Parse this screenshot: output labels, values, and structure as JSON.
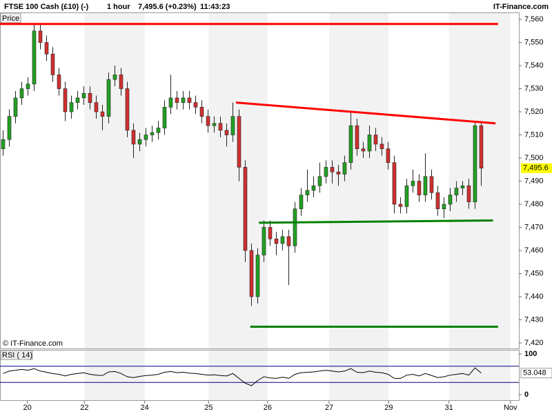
{
  "header": {
    "instrument": "FTSE 100 Cash (£10) (-)",
    "interval": "1 hour",
    "quote": "7,495.6 (+0.23%)",
    "time": "11:43:23",
    "brand": "IT-Finance.com"
  },
  "chart_data": {
    "type": "candlestick",
    "panel_label": "Price",
    "watermark": "© IT-Finance.com",
    "last_label": "7,495.6",
    "up_color": "#22a022",
    "down_color": "#d03030",
    "xlim": [
      0,
      83.56
    ],
    "xticks": [
      {
        "value": 4.4,
        "label": "20"
      },
      {
        "value": 13.6,
        "label": "22"
      },
      {
        "value": 23.3,
        "label": "24"
      },
      {
        "value": 33.6,
        "label": "25"
      },
      {
        "value": 43.1,
        "label": "26"
      },
      {
        "value": 53,
        "label": "27"
      },
      {
        "value": 62.6,
        "label": "29"
      },
      {
        "value": 72.3,
        "label": "31"
      },
      {
        "value": 82.2,
        "label": "Nov"
      }
    ],
    "ylim": [
      7417.6,
      7563
    ],
    "yticks": [
      {
        "value": 7420,
        "label": "7,420"
      },
      {
        "value": 7430,
        "label": "7,430"
      },
      {
        "value": 7440,
        "label": "7,440"
      },
      {
        "value": 7450,
        "label": "7,450"
      },
      {
        "value": 7460,
        "label": "7,460"
      },
      {
        "value": 7470,
        "label": "7,470"
      },
      {
        "value": 7480,
        "label": "7,480"
      },
      {
        "value": 7490,
        "label": "7,490"
      },
      {
        "value": 7500,
        "label": "7,500"
      },
      {
        "value": 7510,
        "label": "7,510"
      },
      {
        "value": 7520,
        "label": "7,520"
      },
      {
        "value": 7530,
        "label": "7,530"
      },
      {
        "value": 7540,
        "label": "7,540"
      },
      {
        "value": 7550,
        "label": "7,550"
      },
      {
        "value": 7560,
        "label": "7,560"
      }
    ],
    "candles": [
      [
        7504,
        7512,
        7501,
        7508
      ],
      [
        7508,
        7521,
        7505,
        7518
      ],
      [
        7518,
        7529,
        7515,
        7526
      ],
      [
        7526,
        7533,
        7523,
        7530
      ],
      [
        7530,
        7535,
        7527,
        7532
      ],
      [
        7532,
        7558,
        7529,
        7555
      ],
      [
        7555,
        7558,
        7547,
        7550
      ],
      [
        7550,
        7553,
        7542,
        7545
      ],
      [
        7545,
        7548,
        7533,
        7536
      ],
      [
        7536,
        7539,
        7527,
        7530
      ],
      [
        7530,
        7533,
        7516,
        7520
      ],
      [
        7520,
        7527,
        7517,
        7524
      ],
      [
        7524,
        7529,
        7521,
        7526
      ],
      [
        7526,
        7531,
        7523,
        7528
      ],
      [
        7528,
        7531,
        7521,
        7524
      ],
      [
        7524,
        7527,
        7517,
        7520
      ],
      [
        7520,
        7523,
        7512,
        7518
      ],
      [
        7518,
        7537,
        7515,
        7534
      ],
      [
        7534,
        7540,
        7531,
        7536
      ],
      [
        7536,
        7539,
        7527,
        7530
      ],
      [
        7530,
        7533,
        7509,
        7512
      ],
      [
        7512,
        7515,
        7500,
        7506
      ],
      [
        7506,
        7511,
        7503,
        7508
      ],
      [
        7508,
        7513,
        7505,
        7510
      ],
      [
        7510,
        7514,
        7507,
        7511
      ],
      [
        7511,
        7516,
        7508,
        7513
      ],
      [
        7513,
        7525,
        7510,
        7522
      ],
      [
        7522,
        7536,
        7519,
        7526
      ],
      [
        7526,
        7529,
        7521,
        7524
      ],
      [
        7524,
        7529,
        7521,
        7526
      ],
      [
        7526,
        7529,
        7521,
        7524
      ],
      [
        7524,
        7527,
        7519,
        7522
      ],
      [
        7522,
        7525,
        7515,
        7518
      ],
      [
        7518,
        7521,
        7511,
        7514
      ],
      [
        7514,
        7518,
        7511,
        7515
      ],
      [
        7515,
        7518,
        7509,
        7512
      ],
      [
        7512,
        7515,
        7505,
        7510
      ],
      [
        7510,
        7524,
        7507,
        7518
      ],
      [
        7518,
        7521,
        7490,
        7496
      ],
      [
        7496,
        7499,
        7455,
        7460
      ],
      [
        7460,
        7463,
        7436,
        7440
      ],
      [
        7440,
        7461,
        7437,
        7458
      ],
      [
        7458,
        7473,
        7455,
        7470
      ],
      [
        7470,
        7473,
        7462,
        7465
      ],
      [
        7465,
        7468,
        7458,
        7463
      ],
      [
        7463,
        7469,
        7460,
        7466
      ],
      [
        7466,
        7469,
        7445,
        7462
      ],
      [
        7462,
        7481,
        7459,
        7478
      ],
      [
        7478,
        7487,
        7475,
        7484
      ],
      [
        7484,
        7495,
        7481,
        7486
      ],
      [
        7486,
        7492,
        7483,
        7488
      ],
      [
        7488,
        7498,
        7485,
        7492
      ],
      [
        7492,
        7499,
        7489,
        7496
      ],
      [
        7496,
        7499,
        7489,
        7494
      ],
      [
        7494,
        7497,
        7488,
        7493
      ],
      [
        7493,
        7501,
        7490,
        7498
      ],
      [
        7498,
        7520,
        7495,
        7514
      ],
      [
        7514,
        7517,
        7501,
        7504
      ],
      [
        7504,
        7507,
        7500,
        7503
      ],
      [
        7503,
        7514,
        7500,
        7510
      ],
      [
        7510,
        7513,
        7503,
        7506
      ],
      [
        7506,
        7509,
        7501,
        7504
      ],
      [
        7504,
        7507,
        7495,
        7498
      ],
      [
        7498,
        7501,
        7476,
        7480
      ],
      [
        7480,
        7483,
        7476,
        7479
      ],
      [
        7479,
        7491,
        7476,
        7488
      ],
      [
        7488,
        7495,
        7485,
        7490
      ],
      [
        7490,
        7493,
        7481,
        7484
      ],
      [
        7484,
        7502,
        7481,
        7492
      ],
      [
        7492,
        7495,
        7482,
        7485
      ],
      [
        7485,
        7488,
        7475,
        7478
      ],
      [
        7478,
        7483,
        7474,
        7480
      ],
      [
        7480,
        7487,
        7477,
        7484
      ],
      [
        7484,
        7490,
        7481,
        7487
      ],
      [
        7487,
        7490,
        7484,
        7488
      ],
      [
        7488,
        7491,
        7478,
        7481
      ],
      [
        7481,
        7516,
        7478,
        7514
      ],
      [
        7514,
        7516,
        7488,
        7495.6
      ]
    ],
    "lines": [
      {
        "color": "#ff0000",
        "x": [
          0,
          80.2
        ],
        "y": [
          7558,
          7558
        ]
      },
      {
        "color": "#ff0000",
        "x": [
          38,
          79.8
        ],
        "y": [
          7524,
          7515
        ]
      },
      {
        "color": "#008000",
        "x": [
          41.7,
          79.4
        ],
        "y": [
          7472,
          7473
        ]
      },
      {
        "color": "#008000",
        "x": [
          40.3,
          80.2
        ],
        "y": [
          7427,
          7427
        ]
      }
    ],
    "rsi": {
      "label": "RSI ( 14)",
      "ylim": [
        0,
        100
      ],
      "yticks": [
        0,
        100
      ],
      "levels": [
        30,
        70
      ],
      "level_color": "#000080",
      "last_label": "53.048",
      "values": [
        52,
        58,
        60,
        62,
        60,
        64,
        58,
        55,
        52,
        50,
        46,
        50,
        52,
        54,
        50,
        48,
        47,
        56,
        57,
        52,
        44,
        42,
        45,
        47,
        48,
        50,
        55,
        57,
        54,
        55,
        53,
        52,
        50,
        48,
        49,
        47,
        46,
        52,
        40,
        28,
        22,
        35,
        44,
        41,
        40,
        43,
        40,
        50,
        54,
        55,
        56,
        58,
        60,
        58,
        56,
        58,
        64,
        55,
        54,
        58,
        55,
        54,
        50,
        40,
        40,
        48,
        50,
        46,
        52,
        47,
        42,
        44,
        48,
        50,
        52,
        48,
        66,
        53.048
      ]
    }
  }
}
